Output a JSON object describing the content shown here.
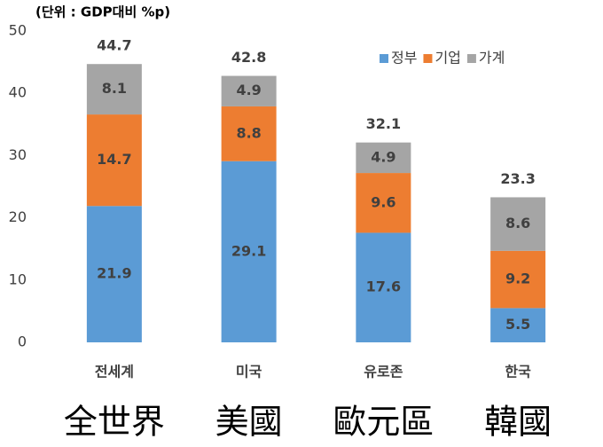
{
  "chart_data": {
    "type": "stacked_bar",
    "axis_label": "(단위 : GDP대비 %p)",
    "categories": [
      "전세계",
      "미국",
      "유로존",
      "한국"
    ],
    "category_translations": [
      "全世界",
      "美國",
      "歐元區",
      "韓國"
    ],
    "series": [
      {
        "name": "정부",
        "color": "#5b9bd5",
        "values": [
          21.9,
          29.1,
          17.6,
          5.5
        ]
      },
      {
        "name": "기업",
        "color": "#ed7d31",
        "values": [
          14.7,
          8.8,
          9.6,
          9.2
        ]
      },
      {
        "name": "가계",
        "color": "#a5a5a5",
        "values": [
          8.1,
          4.9,
          4.9,
          8.6
        ]
      }
    ],
    "totals": [
      44.7,
      42.8,
      32.1,
      23.3
    ],
    "ylim": [
      0,
      50
    ],
    "yticks": [
      0,
      10,
      20,
      30,
      40,
      50
    ],
    "grid": false,
    "legend": "top-right"
  }
}
